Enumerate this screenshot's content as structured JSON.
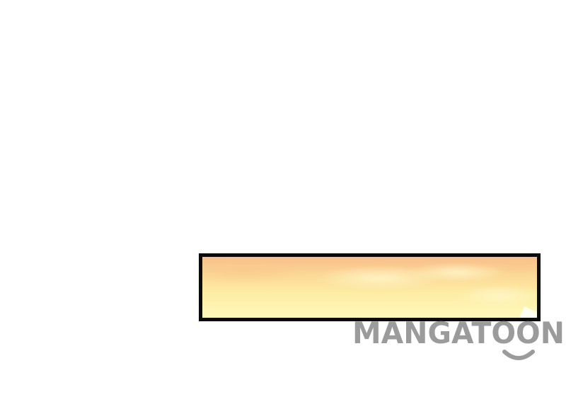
{
  "watermark": {
    "text": "MANGATOON",
    "color": "#9b9b9b"
  },
  "colors": {
    "background": "#ffffff",
    "panel_border": "#0a0a0a",
    "sky_top": "#f8be8c",
    "sky_bottom": "#fff8bc"
  }
}
